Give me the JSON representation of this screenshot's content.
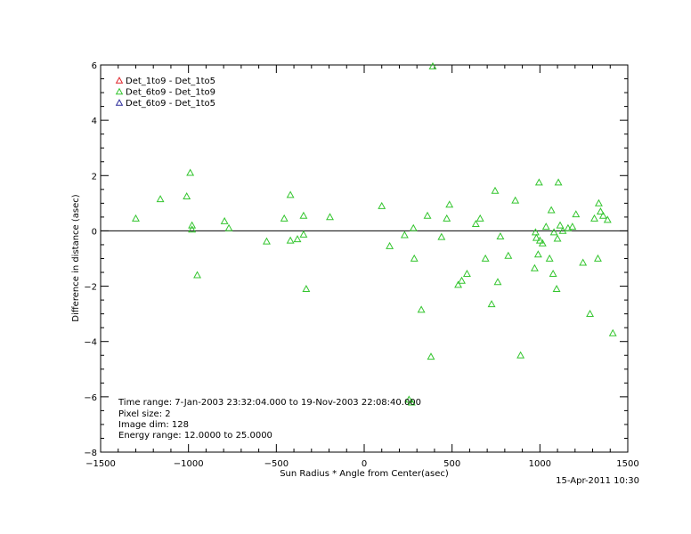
{
  "chart_data": {
    "type": "scatter",
    "xlabel": "Sun Radius * Angle from Center(asec)",
    "ylabel": "Difference in distance (asec)",
    "xlim": [
      -1500,
      1500
    ],
    "ylim": [
      -8,
      6
    ],
    "xticks": [
      -1500,
      -1000,
      -500,
      0,
      500,
      1000,
      1500
    ],
    "yticks": [
      -8,
      -6,
      -4,
      -2,
      0,
      2,
      4,
      6
    ],
    "x_minor_step": 100,
    "y_minor_step": 0.5,
    "zero_line": true,
    "grid": false,
    "legend_position": "top-left",
    "legend": [
      {
        "label": "Det_1to9 - Det_1to5",
        "color": "#e0242a"
      },
      {
        "label": "Det_6to9 - Det_1to9",
        "color": "#33c52e"
      },
      {
        "label": "Det_6to9 - Det_1to5",
        "color": "#2b2b9a"
      }
    ],
    "series": [
      {
        "name": "Det_6to9 - Det_1to9",
        "color": "#33c52e",
        "marker": "triangle",
        "points": [
          [
            -1300,
            0.45
          ],
          [
            -1160,
            1.15
          ],
          [
            -1010,
            1.25
          ],
          [
            -990,
            2.1
          ],
          [
            -980,
            0.2
          ],
          [
            -980,
            0.05
          ],
          [
            -950,
            -1.6
          ],
          [
            -795,
            0.35
          ],
          [
            -770,
            0.1
          ],
          [
            -555,
            -0.38
          ],
          [
            -455,
            0.45
          ],
          [
            -420,
            1.3
          ],
          [
            -420,
            -0.35
          ],
          [
            -380,
            -0.3
          ],
          [
            -345,
            -0.13
          ],
          [
            -345,
            0.55
          ],
          [
            -330,
            -2.1
          ],
          [
            -195,
            0.5
          ],
          [
            100,
            0.9
          ],
          [
            145,
            -0.55
          ],
          [
            230,
            -0.15
          ],
          [
            255,
            -6.1
          ],
          [
            270,
            -6.2
          ],
          [
            280,
            0.1
          ],
          [
            285,
            -1.0
          ],
          [
            325,
            -2.85
          ],
          [
            360,
            0.55
          ],
          [
            380,
            -4.55
          ],
          [
            390,
            5.95
          ],
          [
            440,
            -0.22
          ],
          [
            470,
            0.45
          ],
          [
            485,
            0.95
          ],
          [
            535,
            -1.95
          ],
          [
            555,
            -1.8
          ],
          [
            585,
            -1.55
          ],
          [
            635,
            0.25
          ],
          [
            660,
            0.45
          ],
          [
            690,
            -1.0
          ],
          [
            725,
            -2.65
          ],
          [
            745,
            1.45
          ],
          [
            760,
            -1.85
          ],
          [
            775,
            -0.2
          ],
          [
            820,
            -0.9
          ],
          [
            860,
            1.1
          ],
          [
            890,
            -4.5
          ],
          [
            970,
            -1.35
          ],
          [
            975,
            -0.05
          ],
          [
            980,
            -0.25
          ],
          [
            990,
            -0.85
          ],
          [
            995,
            1.75
          ],
          [
            1000,
            -0.35
          ],
          [
            1015,
            -0.45
          ],
          [
            1035,
            0.15
          ],
          [
            1055,
            -1.0
          ],
          [
            1065,
            0.75
          ],
          [
            1075,
            -1.55
          ],
          [
            1080,
            -0.05
          ],
          [
            1095,
            -2.1
          ],
          [
            1100,
            -0.28
          ],
          [
            1105,
            1.75
          ],
          [
            1115,
            0.2
          ],
          [
            1130,
            0.0
          ],
          [
            1160,
            0.1
          ],
          [
            1185,
            0.15
          ],
          [
            1205,
            0.6
          ],
          [
            1245,
            -1.15
          ],
          [
            1285,
            -3.0
          ],
          [
            1310,
            0.45
          ],
          [
            1330,
            -1.0
          ],
          [
            1335,
            1.0
          ],
          [
            1345,
            0.7
          ],
          [
            1360,
            0.55
          ],
          [
            1385,
            0.4
          ],
          [
            1415,
            -3.7
          ]
        ]
      }
    ],
    "annotation_lines": [
      "Time range:  7-Jan-2003 23:32:04.000 to 19-Nov-2003 22:08:40.000",
      "Pixel size: 2",
      "Image dim: 128",
      "Energy range: 12.0000 to 25.0000"
    ],
    "timestamp": "15-Apr-2011 10:30"
  }
}
